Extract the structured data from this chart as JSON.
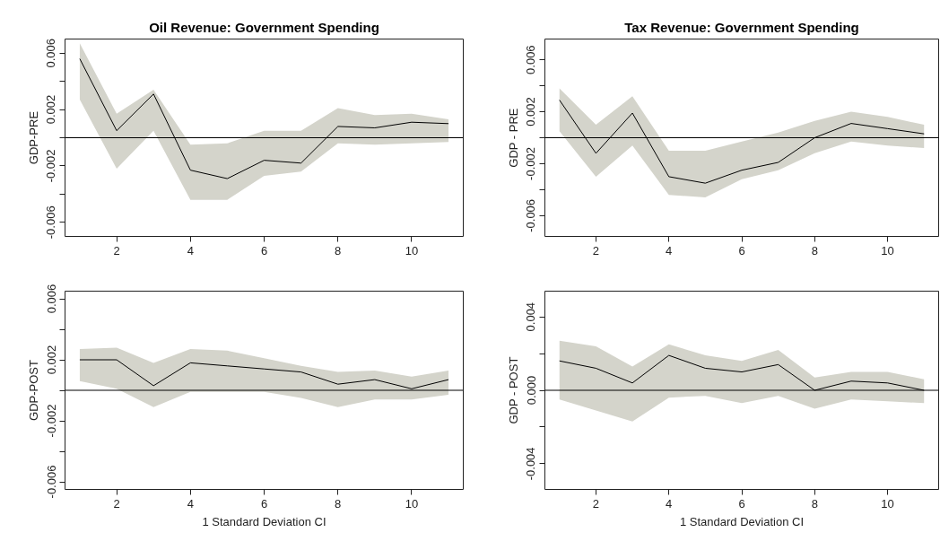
{
  "chart_data": [
    {
      "type": "line",
      "title": "Oil Revenue: Government Spending",
      "ylabel": "GDP-PRE",
      "x": [
        1,
        2,
        3,
        4,
        5,
        6,
        7,
        8,
        9,
        10,
        11
      ],
      "xlim": [
        0.6,
        11.4
      ],
      "xticks": [
        2,
        4,
        6,
        8,
        10
      ],
      "ylim": [
        -0.007,
        0.007
      ],
      "yticks": [
        -0.006,
        {
          "value": -0.004,
          "label": null
        },
        -0.002,
        {
          "value": 0,
          "label": null
        },
        0.002,
        {
          "value": 0.004,
          "label": null
        },
        0.006
      ],
      "grid": false,
      "series": [
        {
          "color": "#000000",
          "values": [
            0.0056,
            0.0005,
            0.0031,
            -0.0023,
            -0.0029,
            -0.0016,
            -0.0018,
            0.0008,
            0.0007,
            0.0011,
            0.001
          ],
          "upper": [
            0.0067,
            0.0017,
            0.0034,
            -0.0005,
            -0.0004,
            0.0005,
            0.0005,
            0.0021,
            0.0016,
            0.0017,
            0.0013
          ],
          "lower": [
            0.0027,
            -0.0022,
            0.0005,
            -0.0044,
            -0.0044,
            -0.0027,
            -0.0024,
            -0.0004,
            -0.0005,
            -0.0004,
            -0.0003
          ]
        }
      ],
      "ref_lines": [
        {
          "axis": "y",
          "value": 0,
          "color": "#000000"
        }
      ]
    },
    {
      "type": "line",
      "title": "Tax Revenue: Government Spending",
      "ylabel": "GDP - PRE",
      "x": [
        1,
        2,
        3,
        4,
        5,
        6,
        7,
        8,
        9,
        10,
        11
      ],
      "xlim": [
        0.6,
        11.4
      ],
      "xticks": [
        2,
        4,
        6,
        8,
        10
      ],
      "ylim": [
        -0.0076,
        0.0076
      ],
      "yticks": [
        -0.006,
        {
          "value": -0.004,
          "label": null
        },
        -0.002,
        {
          "value": 0,
          "label": null
        },
        0.002,
        {
          "value": 0.004,
          "label": null
        },
        0.006
      ],
      "grid": false,
      "series": [
        {
          "color": "#000000",
          "values": [
            0.0029,
            -0.0012,
            0.0019,
            -0.003,
            -0.0035,
            -0.0025,
            -0.0019,
            0.0,
            0.0011,
            0.0007,
            0.0003
          ],
          "upper": [
            0.0038,
            0.001,
            0.0032,
            -0.001,
            -0.001,
            -0.0003,
            0.0004,
            0.0013,
            0.002,
            0.0016,
            0.001
          ],
          "lower": [
            0.0005,
            -0.003,
            -0.0006,
            -0.0044,
            -0.0046,
            -0.0032,
            -0.0025,
            -0.0012,
            -0.0003,
            -0.0006,
            -0.0008
          ]
        }
      ],
      "ref_lines": [
        {
          "axis": "y",
          "value": 0,
          "color": "#000000"
        }
      ]
    },
    {
      "type": "line",
      "xlabel": "1 Standard Deviation CI",
      "ylabel": "GDP-POST",
      "x": [
        1,
        2,
        3,
        4,
        5,
        6,
        7,
        8,
        9,
        10,
        11
      ],
      "xlim": [
        0.6,
        11.4
      ],
      "xticks": [
        2,
        4,
        6,
        8,
        10
      ],
      "ylim": [
        -0.0065,
        0.0065
      ],
      "yticks": [
        -0.006,
        {
          "value": -0.004,
          "label": null
        },
        -0.002,
        {
          "value": 0,
          "label": null
        },
        0.002,
        {
          "value": 0.004,
          "label": null
        },
        0.006
      ],
      "grid": false,
      "series": [
        {
          "color": "#000000",
          "values": [
            0.002,
            0.002,
            0.0003,
            0.0018,
            0.0016,
            0.0014,
            0.0012,
            0.0004,
            0.0007,
            0.0001,
            0.0007
          ],
          "upper": [
            0.0027,
            0.0028,
            0.0018,
            0.0027,
            0.0026,
            0.0021,
            0.0016,
            0.0012,
            0.0013,
            0.0009,
            0.0013
          ],
          "lower": [
            0.0006,
            0.0001,
            -0.0011,
            -0.0001,
            -0.0001,
            -0.0001,
            -0.0005,
            -0.0011,
            -0.0006,
            -0.0006,
            -0.0003
          ]
        }
      ],
      "ref_lines": [
        {
          "axis": "y",
          "value": 0,
          "color": "#000000"
        }
      ]
    },
    {
      "type": "line",
      "xlabel": "1 Standard Deviation CI",
      "ylabel": "GDP - POST",
      "x": [
        1,
        2,
        3,
        4,
        5,
        6,
        7,
        8,
        9,
        10,
        11
      ],
      "xlim": [
        0.6,
        11.4
      ],
      "xticks": [
        2,
        4,
        6,
        8,
        10
      ],
      "ylim": [
        -0.0054,
        0.0054
      ],
      "yticks": [
        -0.004,
        {
          "value": -0.002,
          "label": null
        },
        {
          "value": 0,
          "label": "0.000"
        },
        {
          "value": 0.002,
          "label": null
        },
        0.004
      ],
      "grid": false,
      "series": [
        {
          "color": "#000000",
          "values": [
            0.0016,
            0.0012,
            0.0004,
            0.0019,
            0.0012,
            0.001,
            0.0014,
            0.0,
            0.0005,
            0.0004,
            0.0
          ],
          "upper": [
            0.0027,
            0.0024,
            0.0013,
            0.0025,
            0.0019,
            0.0016,
            0.0022,
            0.0007,
            0.001,
            0.001,
            0.0006
          ],
          "lower": [
            -0.0005,
            -0.0011,
            -0.0017,
            -0.0004,
            -0.0003,
            -0.0007,
            -0.0003,
            -0.001,
            -0.0005,
            -0.0006,
            -0.0007
          ]
        }
      ],
      "ref_lines": [
        {
          "axis": "y",
          "value": 0,
          "color": "#000000"
        }
      ]
    }
  ]
}
